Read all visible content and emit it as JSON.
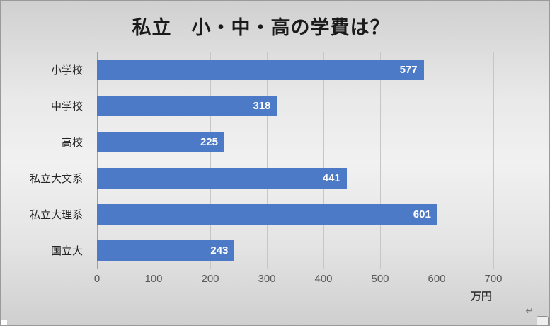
{
  "chart_data": {
    "type": "bar",
    "orientation": "horizontal",
    "title": "私立　小・中・高の学費は？",
    "categories": [
      "小学校",
      "中学校",
      "高校",
      "私立大文系",
      "私立大理系",
      "国立大"
    ],
    "values": [
      577,
      318,
      225,
      441,
      601,
      243
    ],
    "xlabel": "",
    "ylabel": "",
    "xlim": [
      0,
      700
    ],
    "xticks": [
      0,
      100,
      200,
      300,
      400,
      500,
      600,
      700
    ],
    "unit_label": "万円",
    "grid": true,
    "legend": false,
    "bar_color": "#4d7ac7",
    "value_label_color": "#ffffff",
    "gridline_color": "#c6c6c6",
    "tick_label_color": "#595959"
  },
  "decorations": {
    "return_mark": "↵"
  }
}
